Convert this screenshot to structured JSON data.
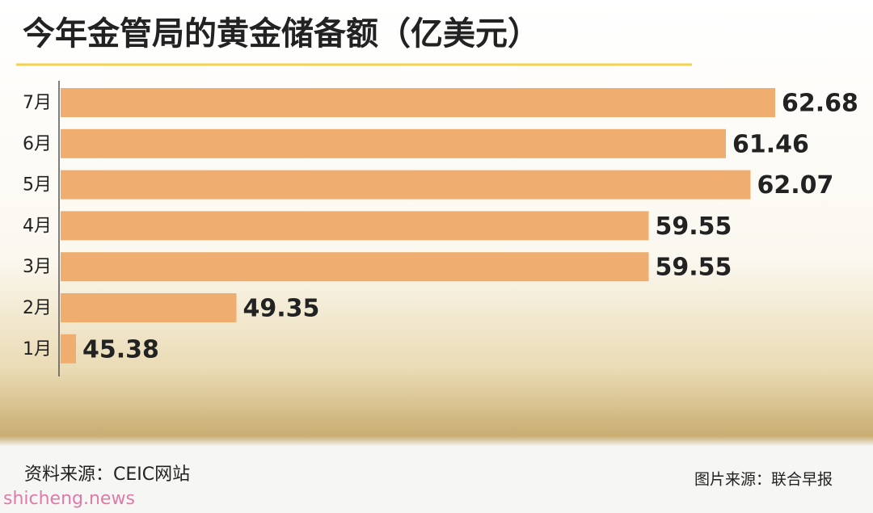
{
  "chart_data": {
    "type": "bar",
    "orientation": "horizontal",
    "title": "今年金管局的黄金储备额（亿美元）",
    "categories": [
      "7月",
      "6月",
      "5月",
      "4月",
      "3月",
      "2月",
      "1月"
    ],
    "values": [
      62.68,
      61.46,
      62.07,
      59.55,
      59.55,
      49.35,
      45.38
    ],
    "color": "#f0ad70",
    "xlim": [
      45,
      64
    ],
    "source": "资料来源：CEIC网站",
    "credit": "图片来源：联合早报",
    "watermark": "shicheng.news"
  }
}
